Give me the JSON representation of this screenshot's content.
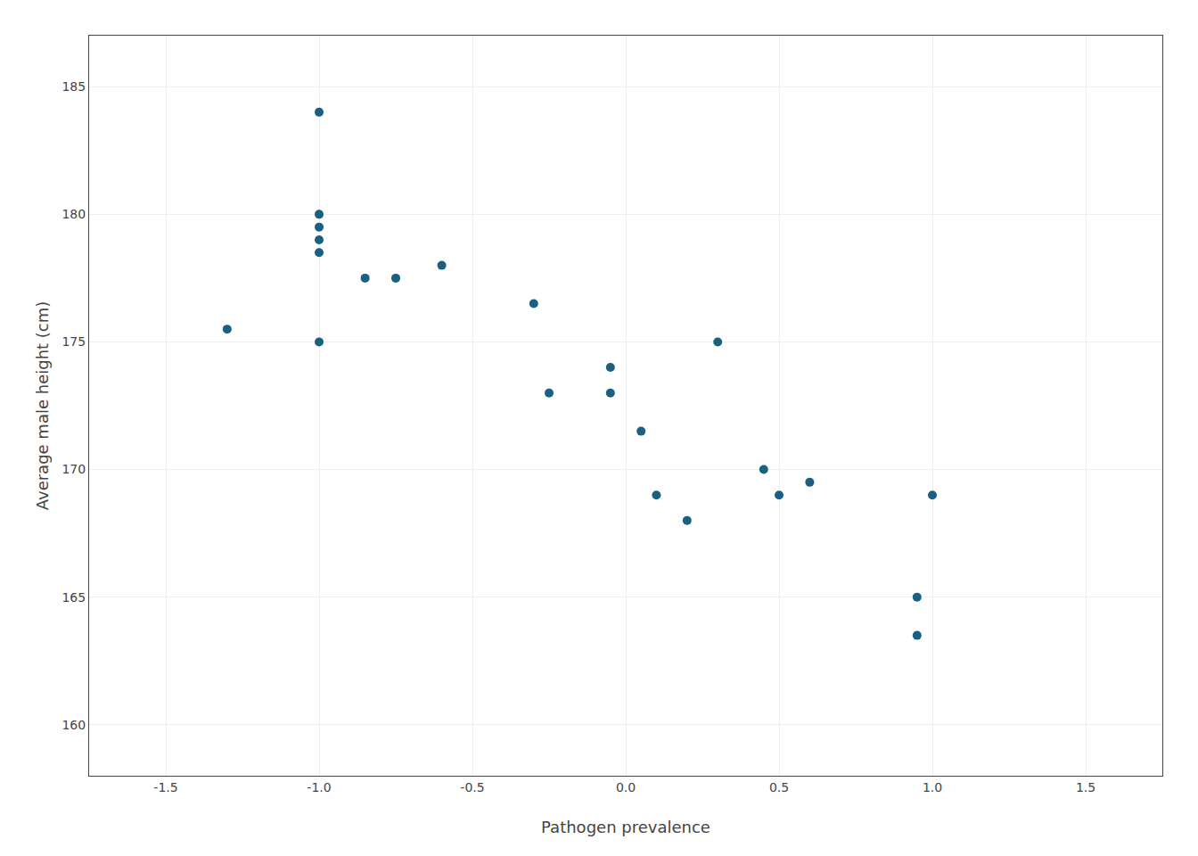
{
  "chart_data": {
    "type": "scatter",
    "x": [
      -1.3,
      -1.0,
      -1.0,
      -1.0,
      -1.0,
      -1.0,
      -1.0,
      -0.85,
      -0.75,
      -0.6,
      -0.25,
      -0.3,
      -0.05,
      -0.05,
      0.05,
      0.1,
      0.2,
      0.3,
      0.45,
      0.5,
      0.6,
      0.95,
      0.95,
      1.0
    ],
    "values": [
      175.5,
      184,
      180,
      179.5,
      179,
      178.5,
      175,
      177.5,
      177.5,
      178,
      173,
      176.5,
      174,
      173,
      171.5,
      169,
      168,
      175,
      170,
      169,
      169.5,
      165,
      163.5,
      169
    ],
    "xlabel": "Pathogen prevalence",
    "ylabel": "Average male height (cm)",
    "xlim": [
      -1.75,
      1.75
    ],
    "ylim": [
      158,
      187
    ],
    "xticks": [
      -1.5,
      {
        "value": -1.0,
        "label": "-1.0"
      },
      -0.5,
      {
        "value": 0.0,
        "label": "0.0"
      },
      0.5,
      {
        "value": 1.0,
        "label": "1.0"
      },
      1.5
    ],
    "yticks": [
      160,
      165,
      170,
      175,
      180,
      185
    ],
    "color": "#1a6080",
    "grid": true
  }
}
